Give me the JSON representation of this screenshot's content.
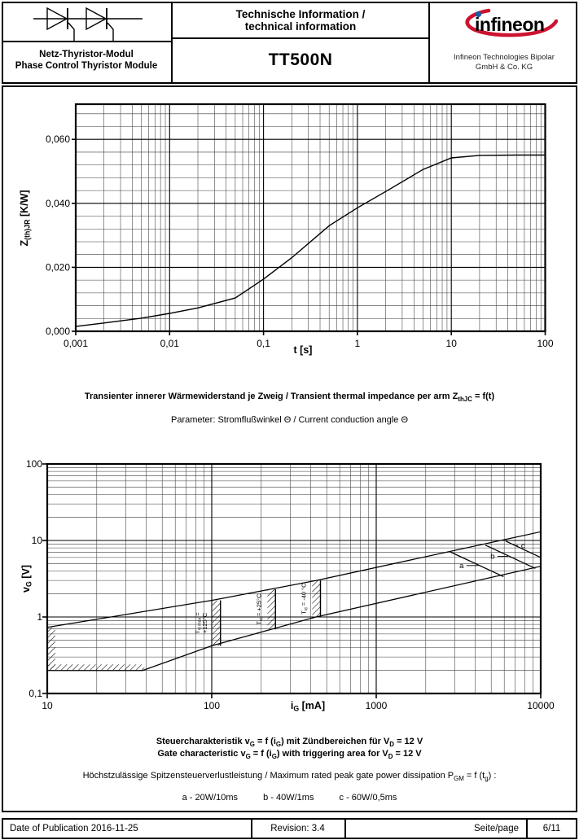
{
  "header": {
    "product_type_de": "Netz-Thyristor-Modul",
    "product_type_en": "Phase Control Thyristor Module",
    "doc_title_de": "Technische Information /",
    "doc_title_en": "technical information",
    "part_number": "TT500N",
    "logo_text": "infineon",
    "company_line1": "Infineon Technologies Bipolar",
    "company_line2": "GmbH & Co. KG",
    "logo_blue": "#1a5ba6",
    "logo_red": "#cc1430"
  },
  "captions": {
    "chart1_title": [
      {
        "t": "Transienter innerer Wärmewiderstand je Zweig / Transient thermal impedance per arm Z"
      },
      {
        "s": "thJC"
      },
      {
        "t": " = f(t)"
      }
    ],
    "chart1_parameter": [
      {
        "t": "Parameter: Stromflußwinkel Θ / Current conduction angle Θ"
      }
    ],
    "chart2_title_de": [
      {
        "t": "Steuercharakteristik v"
      },
      {
        "s": "G"
      },
      {
        "t": " = f (i"
      },
      {
        "s": "G"
      },
      {
        "t": ") mit Zündbereichen für V"
      },
      {
        "s": "D"
      },
      {
        "t": " = 12 V"
      }
    ],
    "chart2_title_en": [
      {
        "t": "Gate characteristic v"
      },
      {
        "s": "G"
      },
      {
        "t": " = f (i"
      },
      {
        "s": "G"
      },
      {
        "t": ") with triggering area for V"
      },
      {
        "s": "D"
      },
      {
        "t": " = 12 V"
      }
    ],
    "chart2_note": [
      {
        "t": "Höchstzulässige Spitzensteuerverlustleistung / Maximum rated peak gate power dissipation P"
      },
      {
        "s": "GM"
      },
      {
        "t": " = f (t"
      },
      {
        "s": "g"
      },
      {
        "t": ") :"
      }
    ],
    "power_legend": [
      "a - 20W/10ms",
      "b - 40W/1ms",
      "c - 60W/0,5ms"
    ]
  },
  "footer": {
    "publication": "Date of Publication 2016-11-25",
    "revision": "Revision: 3.4",
    "page_label": "Seite/page",
    "page_number": "6/11"
  },
  "chart_data": [
    {
      "type": "line",
      "title": "Transient thermal impedance per arm ZthJC = f(t)",
      "xlabel": "t [s]",
      "ylabel": "Z(th)JR [K/W]",
      "xlabel_rich": [
        {
          "t": "t [s]"
        }
      ],
      "ylabel_rich": [
        {
          "t": "Z"
        },
        {
          "s": "(th)JR"
        },
        {
          "t": " [K/W]"
        }
      ],
      "xscale": "log",
      "yscale": "linear",
      "xlim": [
        0.001,
        100
      ],
      "ylim": [
        0,
        0.071
      ],
      "grid": true,
      "xticks": [
        0.001,
        0.01,
        0.1,
        1,
        10,
        100
      ],
      "xtick_labels": [
        "0,001",
        "0,01",
        "0,1",
        "1",
        "10",
        "100"
      ],
      "yticks": [
        0,
        0.02,
        0.04,
        0.06
      ],
      "ytick_labels": [
        "0,000",
        "0,020",
        "0,040",
        "0,060"
      ],
      "y_minor_step": 0.004,
      "series": [
        {
          "name": "Zth-curve",
          "points": [
            [
              0.001,
              0.0015
            ],
            [
              0.002,
              0.0026
            ],
            [
              0.005,
              0.0041
            ],
            [
              0.01,
              0.0056
            ],
            [
              0.02,
              0.0073
            ],
            [
              0.05,
              0.0104
            ],
            [
              0.1,
              0.0163
            ],
            [
              0.2,
              0.023
            ],
            [
              0.5,
              0.033
            ],
            [
              1,
              0.0386
            ],
            [
              2,
              0.0437
            ],
            [
              5,
              0.0506
            ],
            [
              10,
              0.0542
            ],
            [
              20,
              0.055
            ],
            [
              50,
              0.0551
            ],
            [
              100,
              0.0551
            ]
          ]
        }
      ]
    },
    {
      "type": "line",
      "title": "Gate characteristic vG = f(iG) with triggering area for VD = 12 V",
      "xlabel": "iG [mA]",
      "ylabel": "vG [V]",
      "xlabel_rich": [
        {
          "t": "i"
        },
        {
          "s": "G"
        },
        {
          "t": " [mA]"
        }
      ],
      "ylabel_rich": [
        {
          "t": "v"
        },
        {
          "s": "G"
        },
        {
          "t": " [V]"
        }
      ],
      "xscale": "log",
      "yscale": "log",
      "xlim": [
        10,
        10000
      ],
      "ylim": [
        0.1,
        100
      ],
      "grid": true,
      "xticks": [
        10,
        100,
        1000,
        10000
      ],
      "xtick_labels": [
        "10",
        "100",
        "1000",
        "10000"
      ],
      "yticks": [
        0.1,
        1,
        10,
        100
      ],
      "ytick_labels": [
        "0,1",
        "1",
        "10",
        "100"
      ],
      "series": [
        {
          "name": "upper-gate-boundary",
          "points": [
            [
              10,
              0.73
            ],
            [
              100,
              1.65
            ],
            [
              430,
              3.0
            ],
            [
              10000,
              13
            ]
          ]
        },
        {
          "name": "lower-gate-boundary",
          "points": [
            [
              10,
              0.2
            ],
            [
              38,
              0.2
            ],
            [
              100,
              0.42
            ],
            [
              430,
              1.0
            ],
            [
              10000,
              4.6
            ]
          ]
        },
        {
          "name": "power-line-a-20W",
          "points": [
            [
              2815,
              7.1
            ],
            [
              5940,
              3.37
            ]
          ]
        },
        {
          "name": "power-line-b-40W",
          "points": [
            [
              4600,
              8.7
            ],
            [
              9270,
              4.32
            ]
          ]
        },
        {
          "name": "power-line-c-60W",
          "points": [
            [
              6130,
              9.8
            ],
            [
              10000,
              6.0
            ]
          ]
        }
      ],
      "power_labels": [
        {
          "text": "a",
          "iG": 3300,
          "vG": 4.7,
          "watts": 20
        },
        {
          "text": "b",
          "iG": 5100,
          "vG": 6.2,
          "watts": 40
        },
        {
          "text": "c",
          "iG": 7800,
          "vG": 8.6,
          "watts": 60
        }
      ],
      "hatch_bars": [
        {
          "label_rich": [
            {
              "t": "T"
            },
            {
              "s": "vj max"
            },
            {
              "t": " ="
            }
          ],
          "label2": "+125°C",
          "x": [
            101,
            113
          ],
          "v": [
            0.42,
            1.65
          ]
        },
        {
          "label_rich": [
            {
              "t": "T"
            },
            {
              "s": "vj"
            },
            {
              "t": " = +25°C"
            }
          ],
          "x": [
            218,
            244
          ],
          "v": [
            0.69,
            2.3
          ]
        },
        {
          "label_rich": [
            {
              "t": "T"
            },
            {
              "s": "vj"
            },
            {
              "t": " = -40 °C"
            }
          ],
          "x": [
            408,
            458
          ],
          "v": [
            1.0,
            3.0
          ]
        }
      ],
      "hatch_edges": [
        {
          "x": [
            10,
            11.2
          ],
          "v": [
            0.2,
            0.73
          ]
        },
        {
          "x": [
            10,
            39
          ],
          "v": [
            0.2,
            0.24
          ]
        }
      ]
    }
  ]
}
